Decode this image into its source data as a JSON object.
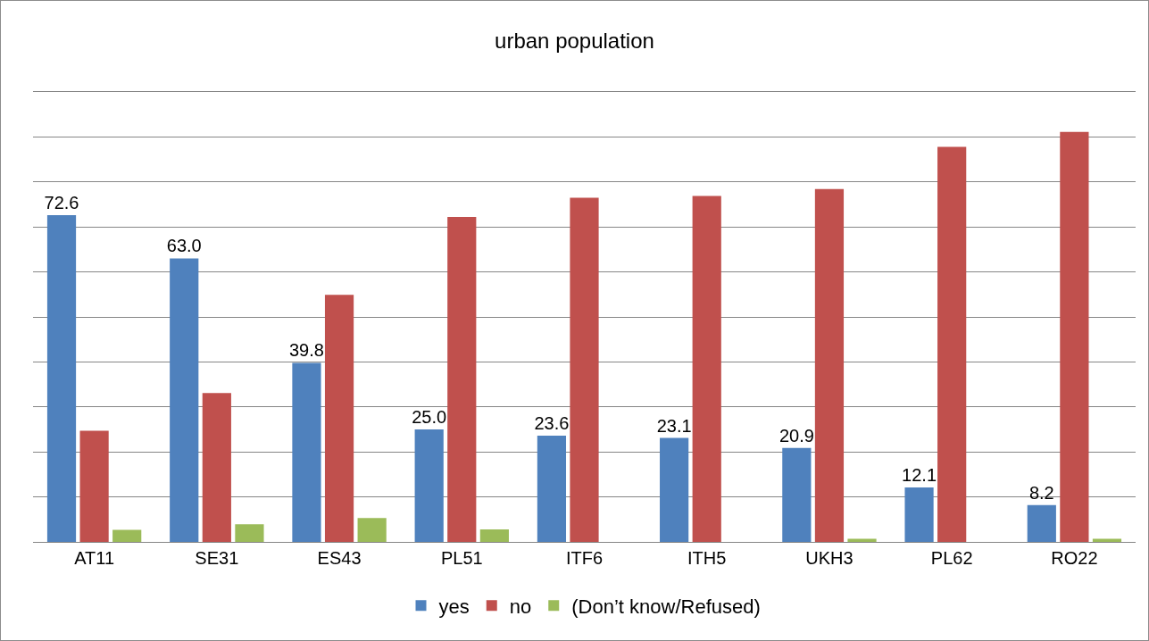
{
  "chart_data": {
    "type": "bar",
    "title": "urban population",
    "categories": [
      "AT11",
      "SE31",
      "ES43",
      "PL51",
      "ITF6",
      "ITH5",
      "UKH3",
      "PL62",
      "RO22"
    ],
    "series": [
      {
        "name": "yes",
        "color": "#4f81bd",
        "values": [
          72.6,
          63.0,
          39.8,
          25.0,
          23.6,
          23.1,
          20.9,
          12.1,
          8.2
        ],
        "value_labels": [
          "72.6",
          "63.0",
          "39.8",
          "25.0",
          "23.6",
          "23.1",
          "20.9",
          "12.1",
          "8.2"
        ]
      },
      {
        "name": "no",
        "color": "#c0504d",
        "values": [
          24.7,
          33.1,
          54.9,
          72.2,
          76.5,
          76.9,
          78.4,
          87.8,
          91.1
        ]
      },
      {
        "name": "(Don’t know/Refused)",
        "color": "#9bbb59",
        "values": [
          2.7,
          3.9,
          5.3,
          2.8,
          null,
          null,
          0.7,
          null,
          0.7
        ]
      }
    ],
    "ylim": [
      0,
      100
    ],
    "yticks": [
      {
        "value": 0,
        "label": null
      },
      {
        "value": 10,
        "label": null
      },
      {
        "value": 20,
        "label": null
      },
      {
        "value": 30,
        "label": null
      },
      {
        "value": 40,
        "label": null
      },
      {
        "value": 50,
        "label": null
      },
      {
        "value": 60,
        "label": null
      },
      {
        "value": 70,
        "label": null
      },
      {
        "value": 80,
        "label": null
      },
      {
        "value": 90,
        "label": null
      },
      {
        "value": 100,
        "label": null
      }
    ],
    "grid": "y",
    "legend": "bottom",
    "tick_labels": "x"
  }
}
